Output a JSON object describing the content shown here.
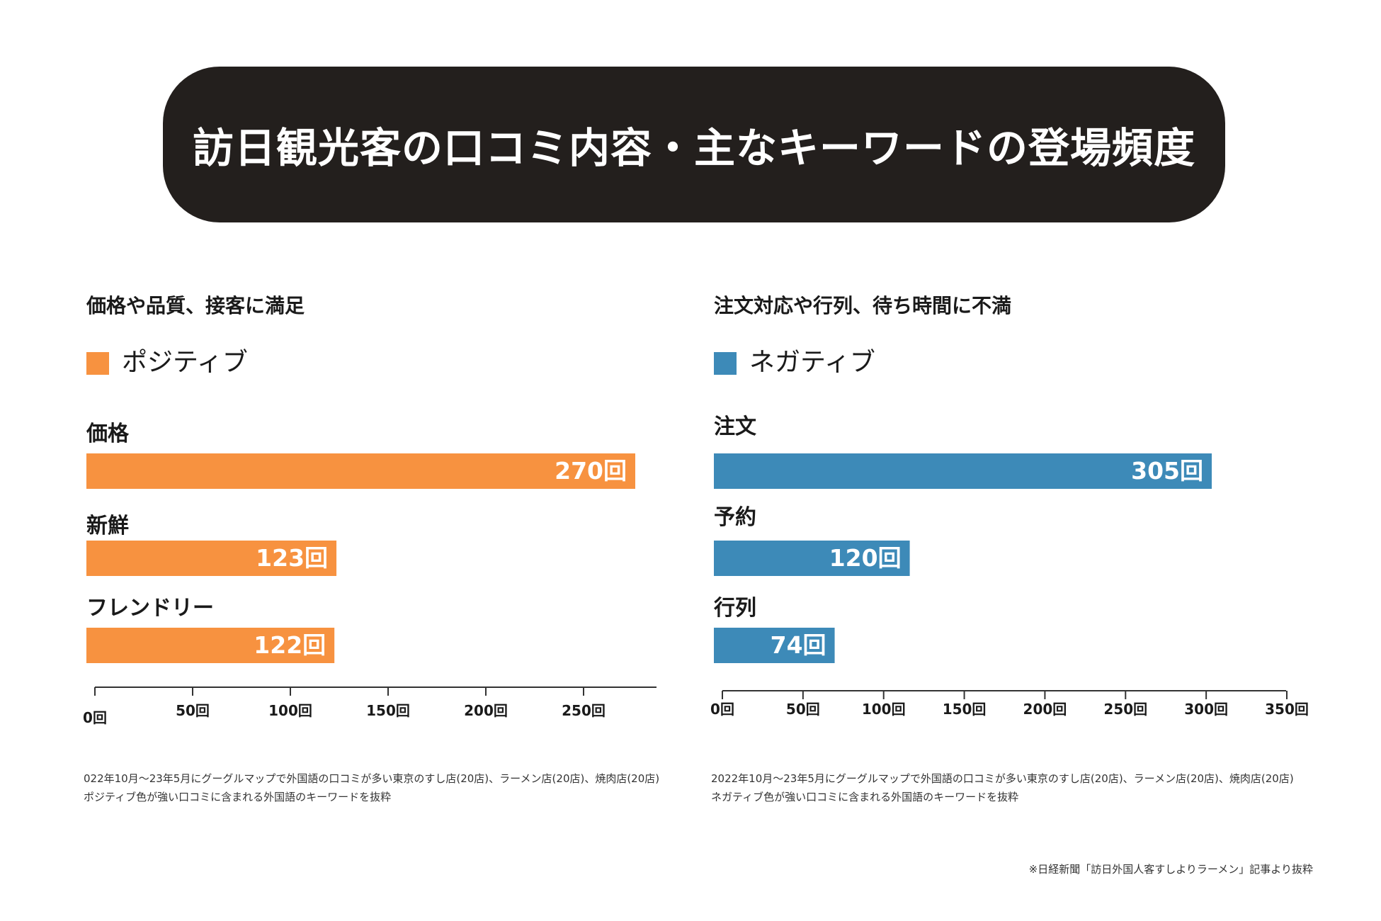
{
  "title": "訪日観光客の口コミ内容・主なキーワードの登場頻度",
  "colors": {
    "positive": "#F79240",
    "negative": "#3D8AB8",
    "banner": "#231F1D"
  },
  "source": "※日経新聞「訪日外国人客すしよりラーメン」記事より抜粋",
  "chart_data": [
    {
      "type": "bar",
      "orientation": "horizontal",
      "title": "価格や品質、接客に満足",
      "legend": "ポジティブ",
      "unit": "回",
      "categories": [
        "価格",
        "新鮮",
        "フレンドリー"
      ],
      "values": [
        270,
        123,
        122
      ],
      "value_labels": [
        "270回",
        "123回",
        "122回"
      ],
      "xlim": [
        0,
        285
      ],
      "ticks": [
        0,
        50,
        100,
        150,
        200,
        250
      ],
      "tick_labels": [
        "0回",
        "50回",
        "100回",
        "150回",
        "200回",
        "250回"
      ],
      "note_lines": [
        "022年10月～23年5月にグーグルマップで外国語の口コミが多い東京のすし店(20店)、ラーメン店(20店)、焼肉店(20店)",
        "ポジティブ色が強い口コミに含まれる外国語のキーワードを抜粋"
      ]
    },
    {
      "type": "bar",
      "orientation": "horizontal",
      "title": "注文対応や行列、待ち時間に不満",
      "legend": "ネガティブ",
      "unit": "回",
      "categories": [
        "注文",
        "予約",
        "行列"
      ],
      "values": [
        305,
        120,
        74
      ],
      "value_labels": [
        "305回",
        "120回",
        "74回"
      ],
      "xlim": [
        0,
        350
      ],
      "ticks": [
        0,
        50,
        100,
        150,
        200,
        250,
        300,
        350
      ],
      "tick_labels": [
        "0回",
        "50回",
        "100回",
        "150回",
        "200回",
        "250回",
        "300回",
        "350回"
      ],
      "note_lines": [
        "2022年10月～23年5月にグーグルマップで外国語の口コミが多い東京のすし店(20店)、ラーメン店(20店)、焼肉店(20店)",
        "ネガティブ色が強い口コミに含まれる外国語のキーワードを抜粋"
      ]
    }
  ]
}
